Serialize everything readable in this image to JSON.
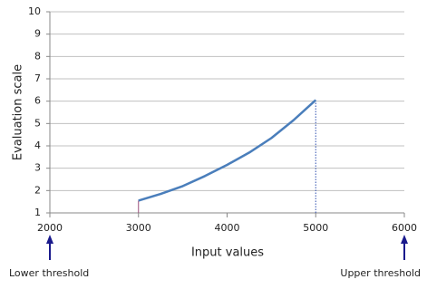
{
  "chart_data": {
    "type": "line",
    "x": [
      3000,
      3250,
      3500,
      3750,
      4000,
      4250,
      4500,
      4750,
      5000
    ],
    "series": [
      {
        "name": "Evaluation",
        "color": "#4a7ebb",
        "values": [
          1.55,
          1.85,
          2.2,
          2.65,
          3.15,
          3.7,
          4.35,
          5.15,
          6.05
        ]
      }
    ],
    "xlabel": "Input values",
    "ylabel": "Evaluation scale",
    "xlim": [
      2000,
      6000
    ],
    "xticks": [
      2000,
      3000,
      4000,
      5000,
      6000
    ],
    "ylim": [
      1,
      10
    ],
    "yticks": [
      1,
      2,
      3,
      4,
      5,
      6,
      7,
      8,
      9,
      10
    ],
    "grid": true,
    "drop_lines": true,
    "annotations": [
      {
        "text": "Lower threshold",
        "x": 2000
      },
      {
        "text": "Upper threshold",
        "x": 6000
      }
    ]
  }
}
